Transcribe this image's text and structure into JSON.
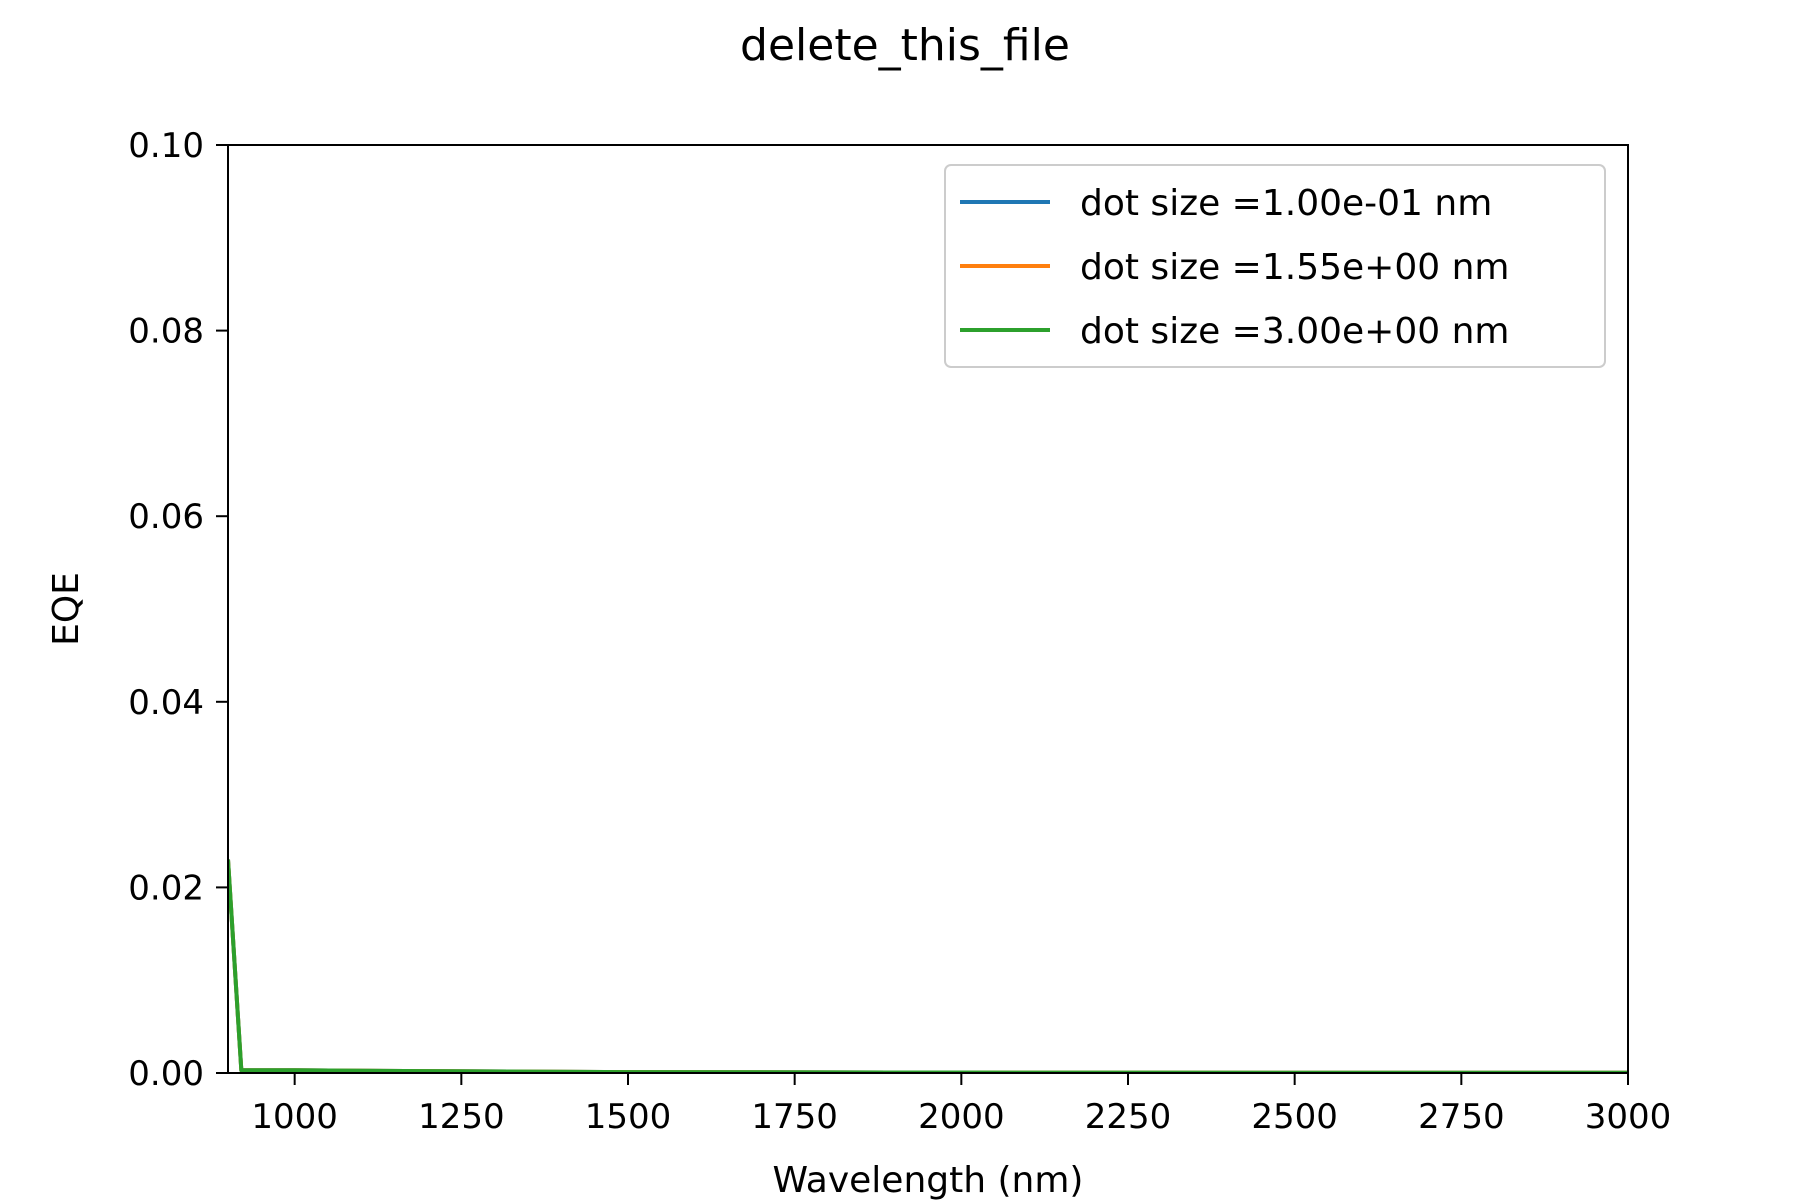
{
  "chart_data": {
    "type": "line",
    "title": "delete_this_file",
    "xlabel": "Wavelength (nm)",
    "ylabel": "EQE",
    "xlim": [
      900,
      3000
    ],
    "ylim": [
      0,
      0.1
    ],
    "xticks": [
      1000,
      1250,
      1500,
      1750,
      2000,
      2250,
      2500,
      2750,
      3000
    ],
    "yticks": [
      0.0,
      0.02,
      0.04,
      0.06,
      0.08,
      0.1
    ],
    "ytick_labels": [
      "0.00",
      "0.02",
      "0.04",
      "0.06",
      "0.08",
      "0.10"
    ],
    "grid": false,
    "legend_position": "top-right",
    "series": [
      {
        "name": "dot size =1.00e-01 nm",
        "color": "#1f77b4",
        "x": [
          900,
          920,
          1000,
          1200,
          1500,
          2000,
          2500,
          3000
        ],
        "y": [
          0.023,
          0.0003,
          0.0003,
          0.0002,
          0.0001,
          5e-05,
          3e-05,
          2e-05
        ]
      },
      {
        "name": "dot size =1.55e+00 nm",
        "color": "#ff7f0e",
        "x": [
          900,
          920,
          1000,
          1200,
          1500,
          2000,
          2500,
          3000
        ],
        "y": [
          0.023,
          0.0003,
          0.0003,
          0.0002,
          0.0001,
          5e-05,
          3e-05,
          2e-05
        ]
      },
      {
        "name": "dot size =3.00e+00 nm",
        "color": "#2ca02c",
        "x": [
          900,
          920,
          1000,
          1200,
          1500,
          2000,
          2500,
          3000
        ],
        "y": [
          0.023,
          0.0003,
          0.0003,
          0.0002,
          0.0001,
          5e-05,
          3e-05,
          2e-05
        ]
      }
    ]
  }
}
